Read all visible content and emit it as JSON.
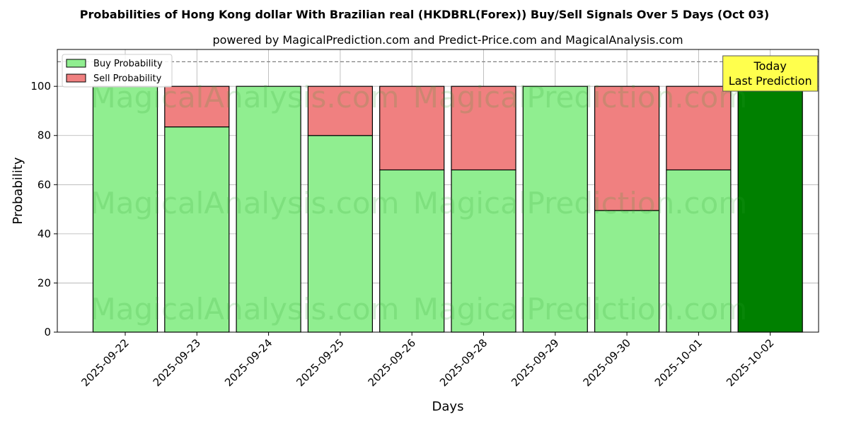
{
  "chart_data": {
    "type": "bar",
    "stacked": true,
    "title": "Probabilities of Hong Kong dollar With Brazilian real (HKDBRL(Forex)) Buy/Sell Signals Over 5 Days (Oct 03)",
    "subtitle": "powered by MagicalPrediction.com and Predict-Price.com and MagicalAnalysis.com",
    "xlabel": "Days",
    "ylabel": "Probability",
    "ylim": [
      0,
      115
    ],
    "yticks": [
      0,
      20,
      40,
      60,
      80,
      100
    ],
    "grid": true,
    "legend_position": "top-left",
    "reference_line": 110,
    "categories": [
      "2025-09-22",
      "2025-09-23",
      "2025-09-24",
      "2025-09-25",
      "2025-09-26",
      "2025-09-28",
      "2025-09-29",
      "2025-09-30",
      "2025-10-01",
      "2025-10-02"
    ],
    "series": [
      {
        "name": "Buy Probability",
        "color": "#90ee90",
        "values": [
          100,
          83.5,
          100,
          80,
          66,
          66,
          100,
          49.5,
          66,
          100
        ]
      },
      {
        "name": "Sell Probability",
        "color": "#f08080",
        "values": [
          0,
          16.5,
          0,
          20,
          34,
          34,
          0,
          50.5,
          34,
          0
        ]
      }
    ],
    "highlight": {
      "index": 9,
      "color": "#008000"
    },
    "annotation": {
      "line1": "Today",
      "line2": "Last Prediction",
      "color": "#ffff4d"
    },
    "watermarks": [
      "MagicalAnalysis.com",
      "MagicalPrediction.com"
    ]
  }
}
